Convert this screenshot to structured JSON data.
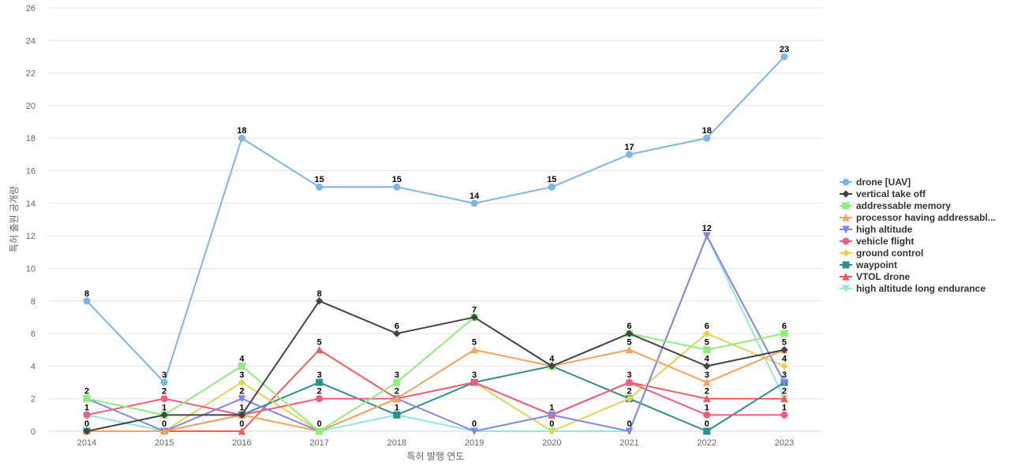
{
  "chart_data": {
    "type": "line",
    "title": "",
    "xlabel": "특허 발행 연도",
    "ylabel": "특허 출원 공개량",
    "x": [
      "2014",
      "2015",
      "2016",
      "2017",
      "2018",
      "2019",
      "2020",
      "2021",
      "2022",
      "2023"
    ],
    "ylim": [
      0,
      26
    ],
    "yticks": [
      0,
      2,
      4,
      6,
      8,
      10,
      12,
      14,
      16,
      18,
      20,
      22,
      24,
      26
    ],
    "grid": true,
    "legend": "right",
    "series": [
      {
        "name": "drone [UAV]",
        "color": "#7cb5ec",
        "marker": "circle",
        "values": [
          8,
          3,
          18,
          15,
          15,
          14,
          15,
          17,
          18,
          23
        ]
      },
      {
        "name": "vertical take off",
        "color": "#434348",
        "marker": "diamond",
        "values": [
          0,
          1,
          1,
          8,
          6,
          7,
          4,
          6,
          4,
          5
        ]
      },
      {
        "name": "addressable memory",
        "color": "#90ed7d",
        "marker": "square",
        "values": [
          2,
          1,
          4,
          0,
          3,
          7,
          4,
          6,
          5,
          6
        ]
      },
      {
        "name": "processor having addressabl...",
        "color": "#f7a35c",
        "marker": "triangle",
        "values": [
          0,
          0,
          1,
          0,
          2,
          5,
          4,
          5,
          3,
          5
        ]
      },
      {
        "name": "high altitude",
        "color": "#8085e9",
        "marker": "triangle-down",
        "values": [
          2,
          0,
          2,
          0,
          2,
          0,
          1,
          0,
          12,
          3
        ]
      },
      {
        "name": "vehicle flight",
        "color": "#f15c80",
        "marker": "circle",
        "values": [
          1,
          2,
          1,
          2,
          2,
          3,
          1,
          3,
          1,
          1
        ]
      },
      {
        "name": "ground control",
        "color": "#e4d354",
        "marker": "diamond",
        "values": [
          0,
          0,
          3,
          0,
          2,
          3,
          0,
          2,
          6,
          4
        ]
      },
      {
        "name": "waypoint",
        "color": "#2b908f",
        "marker": "square",
        "values": [
          0,
          0,
          1,
          3,
          1,
          3,
          4,
          2,
          0,
          3
        ]
      },
      {
        "name": "VTOL drone",
        "color": "#f45b5b",
        "marker": "triangle",
        "values": [
          0,
          0,
          0,
          5,
          2,
          3,
          1,
          3,
          2,
          2
        ]
      },
      {
        "name": "high altitude long endurance",
        "color": "#91e8e1",
        "marker": "triangle-down",
        "values": [
          1,
          0,
          1,
          0,
          1,
          0,
          0,
          0,
          12,
          2
        ]
      }
    ],
    "data_labels": [
      {
        "x": "2014",
        "y": 8,
        "text": "8"
      },
      {
        "x": "2014",
        "y": 2,
        "text": "2"
      },
      {
        "x": "2014",
        "y": 1,
        "text": "1"
      },
      {
        "x": "2014",
        "y": 0,
        "text": "0"
      },
      {
        "x": "2015",
        "y": 3,
        "text": "3"
      },
      {
        "x": "2015",
        "y": 2,
        "text": "2"
      },
      {
        "x": "2015",
        "y": 1,
        "text": "1"
      },
      {
        "x": "2015",
        "y": 0,
        "text": "0"
      },
      {
        "x": "2016",
        "y": 18,
        "text": "18"
      },
      {
        "x": "2016",
        "y": 4,
        "text": "4"
      },
      {
        "x": "2016",
        "y": 3,
        "text": "3"
      },
      {
        "x": "2016",
        "y": 2,
        "text": "2"
      },
      {
        "x": "2016",
        "y": 1,
        "text": "1"
      },
      {
        "x": "2016",
        "y": 0,
        "text": "0"
      },
      {
        "x": "2017",
        "y": 15,
        "text": "15"
      },
      {
        "x": "2017",
        "y": 8,
        "text": "8"
      },
      {
        "x": "2017",
        "y": 5,
        "text": "5"
      },
      {
        "x": "2017",
        "y": 3,
        "text": "3"
      },
      {
        "x": "2017",
        "y": 2,
        "text": "2"
      },
      {
        "x": "2017",
        "y": 0,
        "text": "0"
      },
      {
        "x": "2018",
        "y": 15,
        "text": "15"
      },
      {
        "x": "2018",
        "y": 6,
        "text": "6"
      },
      {
        "x": "2018",
        "y": 3,
        "text": "3"
      },
      {
        "x": "2018",
        "y": 2,
        "text": "2"
      },
      {
        "x": "2018",
        "y": 1,
        "text": "1"
      },
      {
        "x": "2019",
        "y": 14,
        "text": "14"
      },
      {
        "x": "2019",
        "y": 7,
        "text": "7"
      },
      {
        "x": "2019",
        "y": 5,
        "text": "5"
      },
      {
        "x": "2019",
        "y": 3,
        "text": "3"
      },
      {
        "x": "2019",
        "y": 0,
        "text": "0"
      },
      {
        "x": "2020",
        "y": 15,
        "text": "15"
      },
      {
        "x": "2020",
        "y": 4,
        "text": "4"
      },
      {
        "x": "2020",
        "y": 1,
        "text": "1"
      },
      {
        "x": "2020",
        "y": 0,
        "text": "0"
      },
      {
        "x": "2021",
        "y": 17,
        "text": "17"
      },
      {
        "x": "2021",
        "y": 6,
        "text": "6"
      },
      {
        "x": "2021",
        "y": 5,
        "text": "5"
      },
      {
        "x": "2021",
        "y": 3,
        "text": "3"
      },
      {
        "x": "2021",
        "y": 2,
        "text": "2"
      },
      {
        "x": "2021",
        "y": 0,
        "text": "0"
      },
      {
        "x": "2022",
        "y": 18,
        "text": "18"
      },
      {
        "x": "2022",
        "y": 12,
        "text": "12"
      },
      {
        "x": "2022",
        "y": 6,
        "text": "6"
      },
      {
        "x": "2022",
        "y": 5,
        "text": "5"
      },
      {
        "x": "2022",
        "y": 4,
        "text": "4"
      },
      {
        "x": "2022",
        "y": 3,
        "text": "3"
      },
      {
        "x": "2022",
        "y": 2,
        "text": "2"
      },
      {
        "x": "2022",
        "y": 1,
        "text": "1"
      },
      {
        "x": "2022",
        "y": 0,
        "text": "0"
      },
      {
        "x": "2023",
        "y": 23,
        "text": "23"
      },
      {
        "x": "2023",
        "y": 6,
        "text": "6"
      },
      {
        "x": "2023",
        "y": 5,
        "text": "5"
      },
      {
        "x": "2023",
        "y": 4,
        "text": "4"
      },
      {
        "x": "2023",
        "y": 3,
        "text": "3"
      },
      {
        "x": "2023",
        "y": 2,
        "text": "2"
      },
      {
        "x": "2023",
        "y": 1,
        "text": "1"
      }
    ]
  }
}
